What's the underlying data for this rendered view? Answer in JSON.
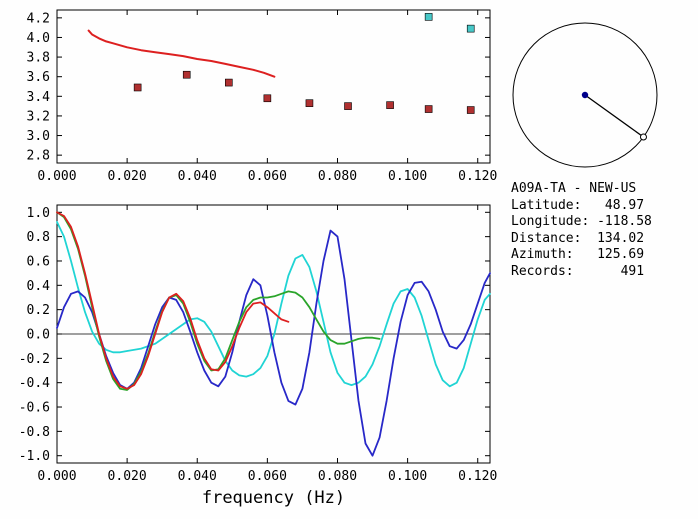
{
  "window": {
    "background": "#fefefe"
  },
  "station": {
    "name": "A09A-TA",
    "reference_model": "NEW-US",
    "latitude": 48.97,
    "longitude": -118.58,
    "distance": 134.02,
    "azimuth": 125.69,
    "records": 491,
    "info_lines": [
      "A09A-TA - NEW-US",
      "Latitude:   48.97",
      "Longitude: -118.58",
      "Distance:  134.02",
      "Azimuth:   125.69",
      "Records:      491"
    ]
  },
  "azimuth_plot": {
    "azimuth_deg": 125.69,
    "circle_color": "#000000",
    "path_color": "#000000",
    "station_color": "#00008b",
    "event_marker_fill": "#ffffff"
  },
  "chart_data": [
    {
      "type": "line",
      "title": "",
      "xlabel": "",
      "ylabel": "",
      "xlim": [
        0,
        0.1235
      ],
      "ylim": [
        2.72,
        4.28
      ],
      "grid": false,
      "zero_line": false,
      "xticks": {
        "values": [
          0,
          0.02,
          0.04,
          0.06,
          0.08,
          0.1,
          0.12
        ],
        "labels": [
          "0.000",
          "0.020",
          "0.040",
          "0.060",
          "0.080",
          "0.100",
          "0.120"
        ]
      },
      "yticks": {
        "values": [
          2.8,
          3.0,
          3.2,
          3.4,
          3.6,
          3.8,
          4.0,
          4.2
        ],
        "labels": [
          "2.8",
          "3.0",
          "3.2",
          "3.4",
          "3.6",
          "3.8",
          "4.0",
          "4.2"
        ]
      },
      "series": [
        {
          "name": "reference-dispersion-curve",
          "type": "line",
          "color": "#dd2020",
          "width": 2,
          "points": [
            [
              0.009,
              4.07
            ],
            [
              0.01,
              4.03
            ],
            [
              0.012,
              3.99
            ],
            [
              0.014,
              3.96
            ],
            [
              0.016,
              3.94
            ],
            [
              0.018,
              3.92
            ],
            [
              0.02,
              3.9
            ],
            [
              0.024,
              3.87
            ],
            [
              0.028,
              3.85
            ],
            [
              0.032,
              3.83
            ],
            [
              0.036,
              3.81
            ],
            [
              0.04,
              3.78
            ],
            [
              0.044,
              3.76
            ],
            [
              0.048,
              3.73
            ],
            [
              0.052,
              3.7
            ],
            [
              0.056,
              3.67
            ],
            [
              0.059,
              3.64
            ],
            [
              0.062,
              3.6
            ]
          ]
        },
        {
          "name": "measured-phase-velocity-points",
          "type": "scatter",
          "marker": "square",
          "color": "#b03030",
          "points": [
            [
              0.023,
              3.49
            ],
            [
              0.037,
              3.62
            ],
            [
              0.049,
              3.54
            ],
            [
              0.06,
              3.38
            ],
            [
              0.072,
              3.33
            ],
            [
              0.083,
              3.3
            ],
            [
              0.095,
              3.31
            ],
            [
              0.106,
              3.27
            ],
            [
              0.118,
              3.26
            ]
          ]
        },
        {
          "name": "outlier-phase-velocity-points",
          "type": "scatter",
          "marker": "square",
          "color": "#48c8c8",
          "points": [
            [
              0.106,
              4.21
            ],
            [
              0.118,
              4.09
            ]
          ]
        }
      ]
    },
    {
      "type": "line",
      "title": "",
      "xlabel": "frequency (Hz)",
      "ylabel": "",
      "xlim": [
        0,
        0.1235
      ],
      "ylim": [
        -1.06,
        1.06
      ],
      "grid": false,
      "zero_line": true,
      "xticks": {
        "values": [
          0,
          0.02,
          0.04,
          0.06,
          0.08,
          0.1,
          0.12
        ],
        "labels": [
          "0.000",
          "0.020",
          "0.040",
          "0.060",
          "0.080",
          "0.100",
          "0.120"
        ]
      },
      "yticks": {
        "values": [
          -1.0,
          -0.8,
          -0.6,
          -0.4,
          -0.2,
          0.0,
          0.2,
          0.4,
          0.6,
          0.8,
          1.0
        ],
        "labels": [
          "-1.0",
          "-0.8",
          "-0.6",
          "-0.4",
          "-0.2",
          "0.0",
          "0.2",
          "0.4",
          "0.6",
          "0.8",
          "1.0"
        ]
      },
      "series": [
        {
          "name": "trace-cyan",
          "type": "line",
          "color": "#20d4d4",
          "width": 1.8,
          "points": [
            [
              0,
              0.92
            ],
            [
              0.002,
              0.8
            ],
            [
              0.004,
              0.6
            ],
            [
              0.006,
              0.38
            ],
            [
              0.008,
              0.18
            ],
            [
              0.01,
              0.02
            ],
            [
              0.012,
              -0.08
            ],
            [
              0.014,
              -0.13
            ],
            [
              0.016,
              -0.15
            ],
            [
              0.018,
              -0.15
            ],
            [
              0.02,
              -0.14
            ],
            [
              0.024,
              -0.12
            ],
            [
              0.028,
              -0.08
            ],
            [
              0.032,
              0.0
            ],
            [
              0.036,
              0.08
            ],
            [
              0.038,
              0.12
            ],
            [
              0.04,
              0.13
            ],
            [
              0.042,
              0.1
            ],
            [
              0.044,
              0.02
            ],
            [
              0.046,
              -0.1
            ],
            [
              0.048,
              -0.22
            ],
            [
              0.05,
              -0.3
            ],
            [
              0.052,
              -0.34
            ],
            [
              0.054,
              -0.35
            ],
            [
              0.056,
              -0.33
            ],
            [
              0.058,
              -0.28
            ],
            [
              0.06,
              -0.18
            ],
            [
              0.062,
              0.0
            ],
            [
              0.064,
              0.25
            ],
            [
              0.066,
              0.48
            ],
            [
              0.068,
              0.62
            ],
            [
              0.07,
              0.65
            ],
            [
              0.072,
              0.55
            ],
            [
              0.074,
              0.35
            ],
            [
              0.076,
              0.1
            ],
            [
              0.078,
              -0.15
            ],
            [
              0.08,
              -0.32
            ],
            [
              0.082,
              -0.4
            ],
            [
              0.084,
              -0.42
            ],
            [
              0.086,
              -0.4
            ],
            [
              0.088,
              -0.35
            ],
            [
              0.09,
              -0.25
            ],
            [
              0.092,
              -0.1
            ],
            [
              0.094,
              0.08
            ],
            [
              0.096,
              0.25
            ],
            [
              0.098,
              0.35
            ],
            [
              0.1,
              0.37
            ],
            [
              0.102,
              0.3
            ],
            [
              0.104,
              0.15
            ],
            [
              0.106,
              -0.05
            ],
            [
              0.108,
              -0.25
            ],
            [
              0.11,
              -0.38
            ],
            [
              0.112,
              -0.43
            ],
            [
              0.114,
              -0.4
            ],
            [
              0.116,
              -0.28
            ],
            [
              0.118,
              -0.08
            ],
            [
              0.12,
              0.12
            ],
            [
              0.122,
              0.28
            ],
            [
              0.1235,
              0.33
            ]
          ]
        },
        {
          "name": "trace-blue",
          "type": "line",
          "color": "#2828c8",
          "width": 1.8,
          "points": [
            [
              0,
              0.05
            ],
            [
              0.002,
              0.22
            ],
            [
              0.004,
              0.33
            ],
            [
              0.006,
              0.35
            ],
            [
              0.008,
              0.3
            ],
            [
              0.01,
              0.18
            ],
            [
              0.012,
              0.0
            ],
            [
              0.014,
              -0.18
            ],
            [
              0.016,
              -0.32
            ],
            [
              0.018,
              -0.42
            ],
            [
              0.02,
              -0.45
            ],
            [
              0.022,
              -0.4
            ],
            [
              0.024,
              -0.28
            ],
            [
              0.026,
              -0.1
            ],
            [
              0.028,
              0.08
            ],
            [
              0.03,
              0.22
            ],
            [
              0.032,
              0.3
            ],
            [
              0.034,
              0.28
            ],
            [
              0.036,
              0.18
            ],
            [
              0.038,
              0.02
            ],
            [
              0.04,
              -0.15
            ],
            [
              0.042,
              -0.3
            ],
            [
              0.044,
              -0.4
            ],
            [
              0.046,
              -0.43
            ],
            [
              0.048,
              -0.35
            ],
            [
              0.05,
              -0.15
            ],
            [
              0.052,
              0.1
            ],
            [
              0.054,
              0.32
            ],
            [
              0.056,
              0.45
            ],
            [
              0.058,
              0.4
            ],
            [
              0.06,
              0.15
            ],
            [
              0.062,
              -0.15
            ],
            [
              0.064,
              -0.4
            ],
            [
              0.066,
              -0.55
            ],
            [
              0.068,
              -0.58
            ],
            [
              0.07,
              -0.45
            ],
            [
              0.072,
              -0.15
            ],
            [
              0.074,
              0.25
            ],
            [
              0.076,
              0.6
            ],
            [
              0.078,
              0.85
            ],
            [
              0.08,
              0.8
            ],
            [
              0.082,
              0.45
            ],
            [
              0.084,
              -0.05
            ],
            [
              0.086,
              -0.55
            ],
            [
              0.088,
              -0.9
            ],
            [
              0.09,
              -1.0
            ],
            [
              0.092,
              -0.85
            ],
            [
              0.094,
              -0.55
            ],
            [
              0.096,
              -0.2
            ],
            [
              0.098,
              0.1
            ],
            [
              0.1,
              0.32
            ],
            [
              0.102,
              0.42
            ],
            [
              0.104,
              0.43
            ],
            [
              0.106,
              0.35
            ],
            [
              0.108,
              0.2
            ],
            [
              0.11,
              0.02
            ],
            [
              0.112,
              -0.1
            ],
            [
              0.114,
              -0.12
            ],
            [
              0.116,
              -0.05
            ],
            [
              0.118,
              0.08
            ],
            [
              0.12,
              0.25
            ],
            [
              0.122,
              0.42
            ],
            [
              0.1235,
              0.5
            ]
          ]
        },
        {
          "name": "trace-green",
          "type": "line",
          "color": "#2aa42a",
          "width": 1.8,
          "points": [
            [
              0,
              1.0
            ],
            [
              0.002,
              0.96
            ],
            [
              0.004,
              0.86
            ],
            [
              0.006,
              0.7
            ],
            [
              0.008,
              0.48
            ],
            [
              0.01,
              0.22
            ],
            [
              0.012,
              -0.02
            ],
            [
              0.014,
              -0.22
            ],
            [
              0.016,
              -0.37
            ],
            [
              0.018,
              -0.45
            ],
            [
              0.02,
              -0.46
            ],
            [
              0.022,
              -0.41
            ],
            [
              0.024,
              -0.31
            ],
            [
              0.026,
              -0.16
            ],
            [
              0.028,
              0.02
            ],
            [
              0.03,
              0.19
            ],
            [
              0.032,
              0.3
            ],
            [
              0.034,
              0.32
            ],
            [
              0.036,
              0.25
            ],
            [
              0.038,
              0.1
            ],
            [
              0.04,
              -0.08
            ],
            [
              0.042,
              -0.22
            ],
            [
              0.044,
              -0.3
            ],
            [
              0.046,
              -0.29
            ],
            [
              0.048,
              -0.2
            ],
            [
              0.05,
              -0.05
            ],
            [
              0.052,
              0.1
            ],
            [
              0.054,
              0.22
            ],
            [
              0.056,
              0.28
            ],
            [
              0.058,
              0.3
            ],
            [
              0.06,
              0.3
            ],
            [
              0.062,
              0.31
            ],
            [
              0.064,
              0.33
            ],
            [
              0.066,
              0.35
            ],
            [
              0.068,
              0.34
            ],
            [
              0.07,
              0.3
            ],
            [
              0.072,
              0.22
            ],
            [
              0.074,
              0.12
            ],
            [
              0.076,
              0.02
            ],
            [
              0.078,
              -0.05
            ],
            [
              0.08,
              -0.08
            ],
            [
              0.082,
              -0.08
            ],
            [
              0.084,
              -0.06
            ],
            [
              0.086,
              -0.04
            ],
            [
              0.088,
              -0.03
            ],
            [
              0.09,
              -0.03
            ],
            [
              0.092,
              -0.04
            ]
          ]
        },
        {
          "name": "trace-red",
          "type": "line",
          "color": "#dd2020",
          "width": 1.8,
          "points": [
            [
              0,
              1.0
            ],
            [
              0.002,
              0.97
            ],
            [
              0.004,
              0.88
            ],
            [
              0.006,
              0.72
            ],
            [
              0.008,
              0.5
            ],
            [
              0.01,
              0.25
            ],
            [
              0.012,
              0.0
            ],
            [
              0.014,
              -0.2
            ],
            [
              0.016,
              -0.35
            ],
            [
              0.018,
              -0.43
            ],
            [
              0.02,
              -0.45
            ],
            [
              0.022,
              -0.42
            ],
            [
              0.024,
              -0.33
            ],
            [
              0.026,
              -0.18
            ],
            [
              0.028,
              0.0
            ],
            [
              0.03,
              0.18
            ],
            [
              0.032,
              0.3
            ],
            [
              0.034,
              0.33
            ],
            [
              0.036,
              0.27
            ],
            [
              0.038,
              0.13
            ],
            [
              0.04,
              -0.05
            ],
            [
              0.042,
              -0.2
            ],
            [
              0.044,
              -0.29
            ],
            [
              0.046,
              -0.3
            ],
            [
              0.048,
              -0.23
            ],
            [
              0.05,
              -0.1
            ],
            [
              0.052,
              0.05
            ],
            [
              0.054,
              0.18
            ],
            [
              0.056,
              0.25
            ],
            [
              0.058,
              0.26
            ],
            [
              0.06,
              0.22
            ],
            [
              0.062,
              0.17
            ],
            [
              0.064,
              0.12
            ],
            [
              0.066,
              0.1
            ]
          ]
        }
      ]
    }
  ]
}
